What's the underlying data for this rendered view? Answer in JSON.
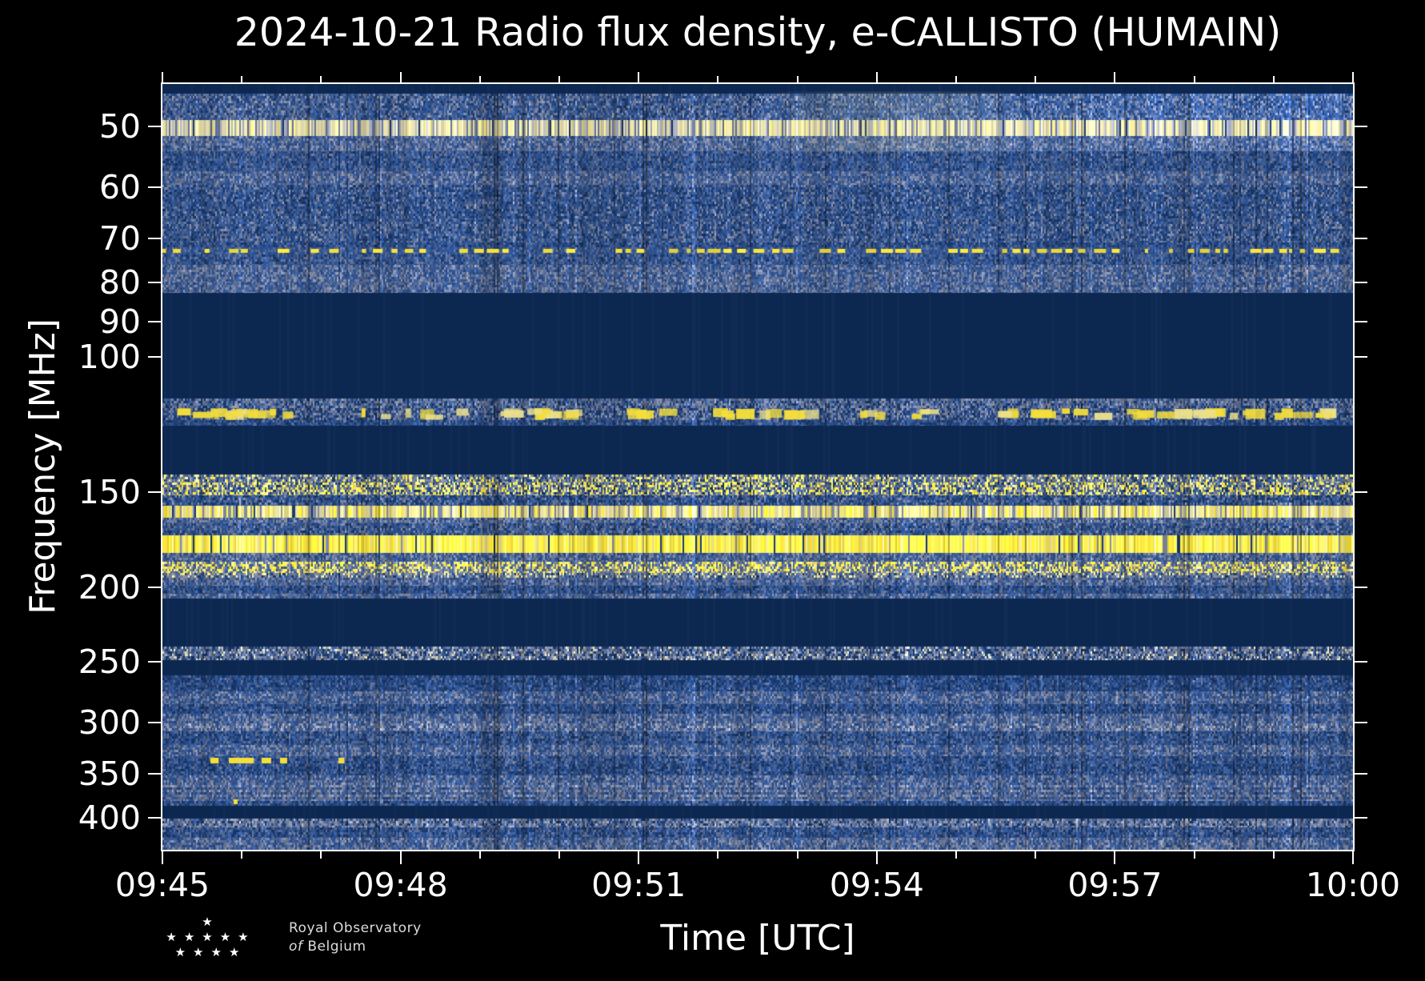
{
  "title": "2024-10-21 Radio flux density, e-CALLISTO (HUMAIN)",
  "x_axis": {
    "label": "Time [UTC]",
    "tick_labels": [
      "09:45",
      "09:48",
      "09:51",
      "09:54",
      "09:57",
      "10:00"
    ],
    "start_minute": 0,
    "end_minute": 15,
    "major_tick_every_min": 3,
    "minor_tick_every_min": 1
  },
  "y_axis": {
    "label": "Frequency [MHz]",
    "scale": "log",
    "min_mhz": 44,
    "max_mhz": 440,
    "tick_labels": [
      "50",
      "60",
      "70",
      "80",
      "90",
      "100",
      "150",
      "200",
      "250",
      "300",
      "350",
      "400"
    ]
  },
  "branding": {
    "org_line1": "Royal Observatory",
    "org_line2_prefix": "of",
    "org_line2": "Belgium",
    "star_rows": [
      1,
      5,
      4
    ]
  },
  "chart_data": {
    "type": "heatmap",
    "title": "2024-10-21 Radio flux density, e-CALLISTO (HUMAIN)",
    "xlabel": "Time [UTC]",
    "ylabel": "Frequency [MHz]",
    "x_range_utc": [
      "09:45",
      "10:00"
    ],
    "y_range_mhz": [
      44,
      440
    ],
    "y_scale": "log",
    "legend": "none",
    "grid": false,
    "colors": {
      "navy": "#0d2850",
      "navy2": "#173463",
      "blue": "#28477f",
      "blue2": "#36578f",
      "slate": "#5c698a",
      "gray": "#7a839b",
      "lightgray": "#9ea3b4",
      "cream": "#d7d0a4",
      "paleyellow": "#ebe08c",
      "yellow": "#f4de3c",
      "brightyellow": "#faf060"
    },
    "bands": [
      {
        "f": [
          44,
          45.3
        ],
        "kind": "flat"
      },
      {
        "f": [
          45.3,
          49
        ],
        "kind": "noise",
        "mix": {
          "blue": 30,
          "blue2": 24,
          "slate": 20,
          "gray": 14,
          "navy2": 12
        },
        "ramp": 0.5
      },
      {
        "f": [
          49,
          51.4
        ],
        "kind": "line",
        "mix": {
          "cream": 50,
          "lightgray": 22,
          "paleyellow": 16,
          "slate": 12
        },
        "ramp": 0.25
      },
      {
        "f": [
          51.4,
          53.8
        ],
        "kind": "noise",
        "mix": {
          "slate": 28,
          "gray": 22,
          "blue2": 26,
          "blue": 24
        },
        "ramp": 0.3
      },
      {
        "f": [
          53.8,
          57.2
        ],
        "kind": "noise",
        "mix": {
          "blue": 34,
          "blue2": 28,
          "slate": 20,
          "navy2": 18
        }
      },
      {
        "f": [
          57.2,
          59.6
        ],
        "kind": "noise",
        "mix": {
          "slate": 28,
          "gray": 18,
          "blue2": 30,
          "blue": 24
        }
      },
      {
        "f": [
          59.6,
          66
        ],
        "kind": "noise",
        "mix": {
          "blue": 32,
          "blue2": 26,
          "navy2": 20,
          "slate": 14,
          "gray": 8
        }
      },
      {
        "f": [
          66,
          70.8
        ],
        "kind": "noise",
        "mix": {
          "blue": 30,
          "blue2": 24,
          "navy2": 16,
          "slate": 20,
          "gray": 10
        }
      },
      {
        "f": [
          70.8,
          71.9
        ],
        "kind": "noise",
        "mix": {
          "blue": 38,
          "navy2": 26,
          "blue2": 24,
          "slate": 12
        }
      },
      {
        "f": [
          71.9,
          73.5
        ],
        "kind": "dashline",
        "mix": {
          "blue": 46,
          "blue2": 30,
          "slate": 24
        },
        "dash": "yellow",
        "density": 0.62
      },
      {
        "f": [
          73.5,
          75.8
        ],
        "kind": "noise",
        "mix": {
          "blue": 34,
          "blue2": 28,
          "slate": 22,
          "navy2": 16
        }
      },
      {
        "f": [
          75.8,
          80
        ],
        "kind": "noise",
        "mix": {
          "slate": 26,
          "gray": 22,
          "blue2": 28,
          "blue": 24
        }
      },
      {
        "f": [
          80,
          82.5
        ],
        "kind": "noise",
        "mix": {
          "blue": 28,
          "blue2": 26,
          "slate": 26,
          "gray": 20
        }
      },
      {
        "f": [
          82.5,
          113.3
        ],
        "kind": "flat"
      },
      {
        "f": [
          113.3,
          116.5
        ],
        "kind": "noise",
        "mix": {
          "slate": 28,
          "gray": 24,
          "blue2": 26,
          "navy2": 22
        }
      },
      {
        "f": [
          116.5,
          121
        ],
        "kind": "blobs",
        "mix": {
          "blue": 32,
          "slate": 26,
          "navy2": 24,
          "gray": 18
        },
        "blob_count": 85
      },
      {
        "f": [
          121,
          122.8
        ],
        "kind": "noise",
        "mix": {
          "blue": 38,
          "navy2": 30,
          "blue2": 22,
          "slate": 10
        }
      },
      {
        "f": [
          122.8,
          142.3
        ],
        "kind": "flat"
      },
      {
        "f": [
          142.3,
          145.8
        ],
        "kind": "speckle",
        "mix": {
          "gray": 22,
          "slate": 18,
          "paleyellow": 14,
          "yellow": 12,
          "blue2": 20,
          "navy2": 14
        }
      },
      {
        "f": [
          145.8,
          151.4
        ],
        "kind": "speckle",
        "mix": {
          "yellow": 22,
          "paleyellow": 16,
          "gray": 18,
          "slate": 14,
          "blue2": 16,
          "navy2": 14
        }
      },
      {
        "f": [
          151.4,
          156.4
        ],
        "kind": "noise",
        "mix": {
          "blue": 28,
          "navy2": 26,
          "blue2": 22,
          "slate": 14,
          "gray": 10
        }
      },
      {
        "f": [
          156.4,
          162.3
        ],
        "kind": "line",
        "mix": {
          "paleyellow": 34,
          "cream": 28,
          "yellow": 22,
          "gray": 16
        }
      },
      {
        "f": [
          162.3,
          164.8
        ],
        "kind": "noise",
        "mix": {
          "gray": 28,
          "slate": 24,
          "blue2": 26,
          "blue": 22
        }
      },
      {
        "f": [
          164.8,
          170.8
        ],
        "kind": "noise",
        "mix": {
          "blue": 30,
          "blue2": 24,
          "slate": 20,
          "navy2": 16,
          "gray": 10
        }
      },
      {
        "f": [
          170.8,
          180
        ],
        "kind": "line",
        "mix": {
          "yellow": 56,
          "brightyellow": 24,
          "paleyellow": 16,
          "gray": 4
        }
      },
      {
        "f": [
          180,
          185.2
        ],
        "kind": "noise",
        "mix": {
          "slate": 26,
          "blue2": 26,
          "gray": 22,
          "blue": 26
        }
      },
      {
        "f": [
          185.2,
          191.3
        ],
        "kind": "speckle",
        "mix": {
          "yellow": 28,
          "paleyellow": 18,
          "slate": 18,
          "blue2": 18,
          "gray": 18
        }
      },
      {
        "f": [
          191.3,
          194
        ],
        "kind": "speckle",
        "mix": {
          "gray": 28,
          "slate": 24,
          "blue2": 20,
          "paleyellow": 16,
          "navy2": 12
        }
      },
      {
        "f": [
          194,
          199
        ],
        "kind": "noise",
        "mix": {
          "blue": 28,
          "blue2": 24,
          "slate": 26,
          "gray": 22
        }
      },
      {
        "f": [
          199,
          203.5
        ],
        "kind": "noise",
        "mix": {
          "blue": 34,
          "navy2": 26,
          "blue2": 26,
          "slate": 14
        }
      },
      {
        "f": [
          203.5,
          206.8
        ],
        "kind": "noise",
        "mix": {
          "slate": 28,
          "gray": 18,
          "blue2": 30,
          "blue": 24
        }
      },
      {
        "f": [
          206.8,
          238.8
        ],
        "kind": "flat"
      },
      {
        "f": [
          238.8,
          248.6
        ],
        "kind": "speckle",
        "mix": {
          "navy2": 26,
          "slate": 22,
          "gray": 18,
          "blue2": 18,
          "cream": 9,
          "lightgray": 7
        }
      },
      {
        "f": [
          248.6,
          260.6
        ],
        "kind": "flat"
      },
      {
        "f": [
          260.6,
          273
        ],
        "kind": "noise",
        "mix": {
          "navy2": 34,
          "blue": 34,
          "blue2": 22,
          "slate": 10
        }
      },
      {
        "f": [
          273,
          284
        ],
        "kind": "noise",
        "mix": {
          "blue": 30,
          "blue2": 26,
          "slate": 24,
          "gray": 20
        }
      },
      {
        "f": [
          284,
          292
        ],
        "kind": "noise",
        "mix": {
          "blue": 34,
          "navy2": 28,
          "blue2": 24,
          "slate": 14
        }
      },
      {
        "f": [
          292,
          301
        ],
        "kind": "noise",
        "mix": {
          "slate": 26,
          "gray": 22,
          "blue2": 28,
          "blue": 24
        }
      },
      {
        "f": [
          301,
          308
        ],
        "kind": "speckle",
        "mix": {
          "gray": 26,
          "lightgray": 12,
          "slate": 22,
          "blue2": 22,
          "blue": 18
        }
      },
      {
        "f": [
          308,
          321
        ],
        "kind": "noise",
        "mix": {
          "blue": 32,
          "blue2": 26,
          "navy2": 22,
          "slate": 20
        }
      },
      {
        "f": [
          321,
          332
        ],
        "kind": "noise",
        "mix": {
          "slate": 24,
          "blue2": 28,
          "blue": 28,
          "gray": 20
        }
      },
      {
        "f": [
          332,
          340
        ],
        "kind": "noise",
        "mix": {
          "blue": 34,
          "blue2": 26,
          "navy2": 22,
          "slate": 18
        }
      },
      {
        "f": [
          340,
          352
        ],
        "kind": "noise",
        "mix": {
          "navy2": 30,
          "blue": 32,
          "blue2": 22,
          "slate": 16
        }
      },
      {
        "f": [
          352,
          362
        ],
        "kind": "noise",
        "mix": {
          "blue": 30,
          "blue2": 26,
          "slate": 24,
          "gray": 20
        }
      },
      {
        "f": [
          362,
          380
        ],
        "kind": "noise",
        "mix": {
          "slate": 26,
          "gray": 26,
          "blue2": 26,
          "blue": 22
        },
        "rows": true
      },
      {
        "f": [
          380,
          385
        ],
        "kind": "noise",
        "mix": {
          "blue": 36,
          "blue2": 26,
          "navy2": 24,
          "slate": 14
        }
      },
      {
        "f": [
          385,
          401
        ],
        "kind": "flat"
      },
      {
        "f": [
          401,
          411
        ],
        "kind": "speckle",
        "mix": {
          "gray": 26,
          "slate": 24,
          "lightgray": 10,
          "blue2": 22,
          "navy2": 18
        }
      },
      {
        "f": [
          411,
          424
        ],
        "kind": "noise",
        "mix": {
          "blue": 32,
          "blue2": 26,
          "navy2": 24,
          "slate": 18
        }
      },
      {
        "f": [
          424,
          440
        ],
        "kind": "noise",
        "mix": {
          "slate": 26,
          "gray": 24,
          "blue2": 26,
          "blue": 24
        }
      }
    ],
    "events": [
      {
        "type": "dashes",
        "f_mhz": 336,
        "color": "yellow",
        "segments": [
          [
            0.04,
            0.047
          ],
          [
            0.056,
            0.077
          ],
          [
            0.083,
            0.091
          ],
          [
            0.099,
            0.105
          ],
          [
            0.148,
            0.153
          ]
        ]
      },
      {
        "type": "dot",
        "f_mhz": 381,
        "t": 0.06,
        "color": "yellow"
      },
      {
        "type": "patch",
        "f_mhz": [
          45,
          54
        ],
        "t": [
          0.5,
          0.73
        ],
        "strength": 0.45
      }
    ]
  }
}
